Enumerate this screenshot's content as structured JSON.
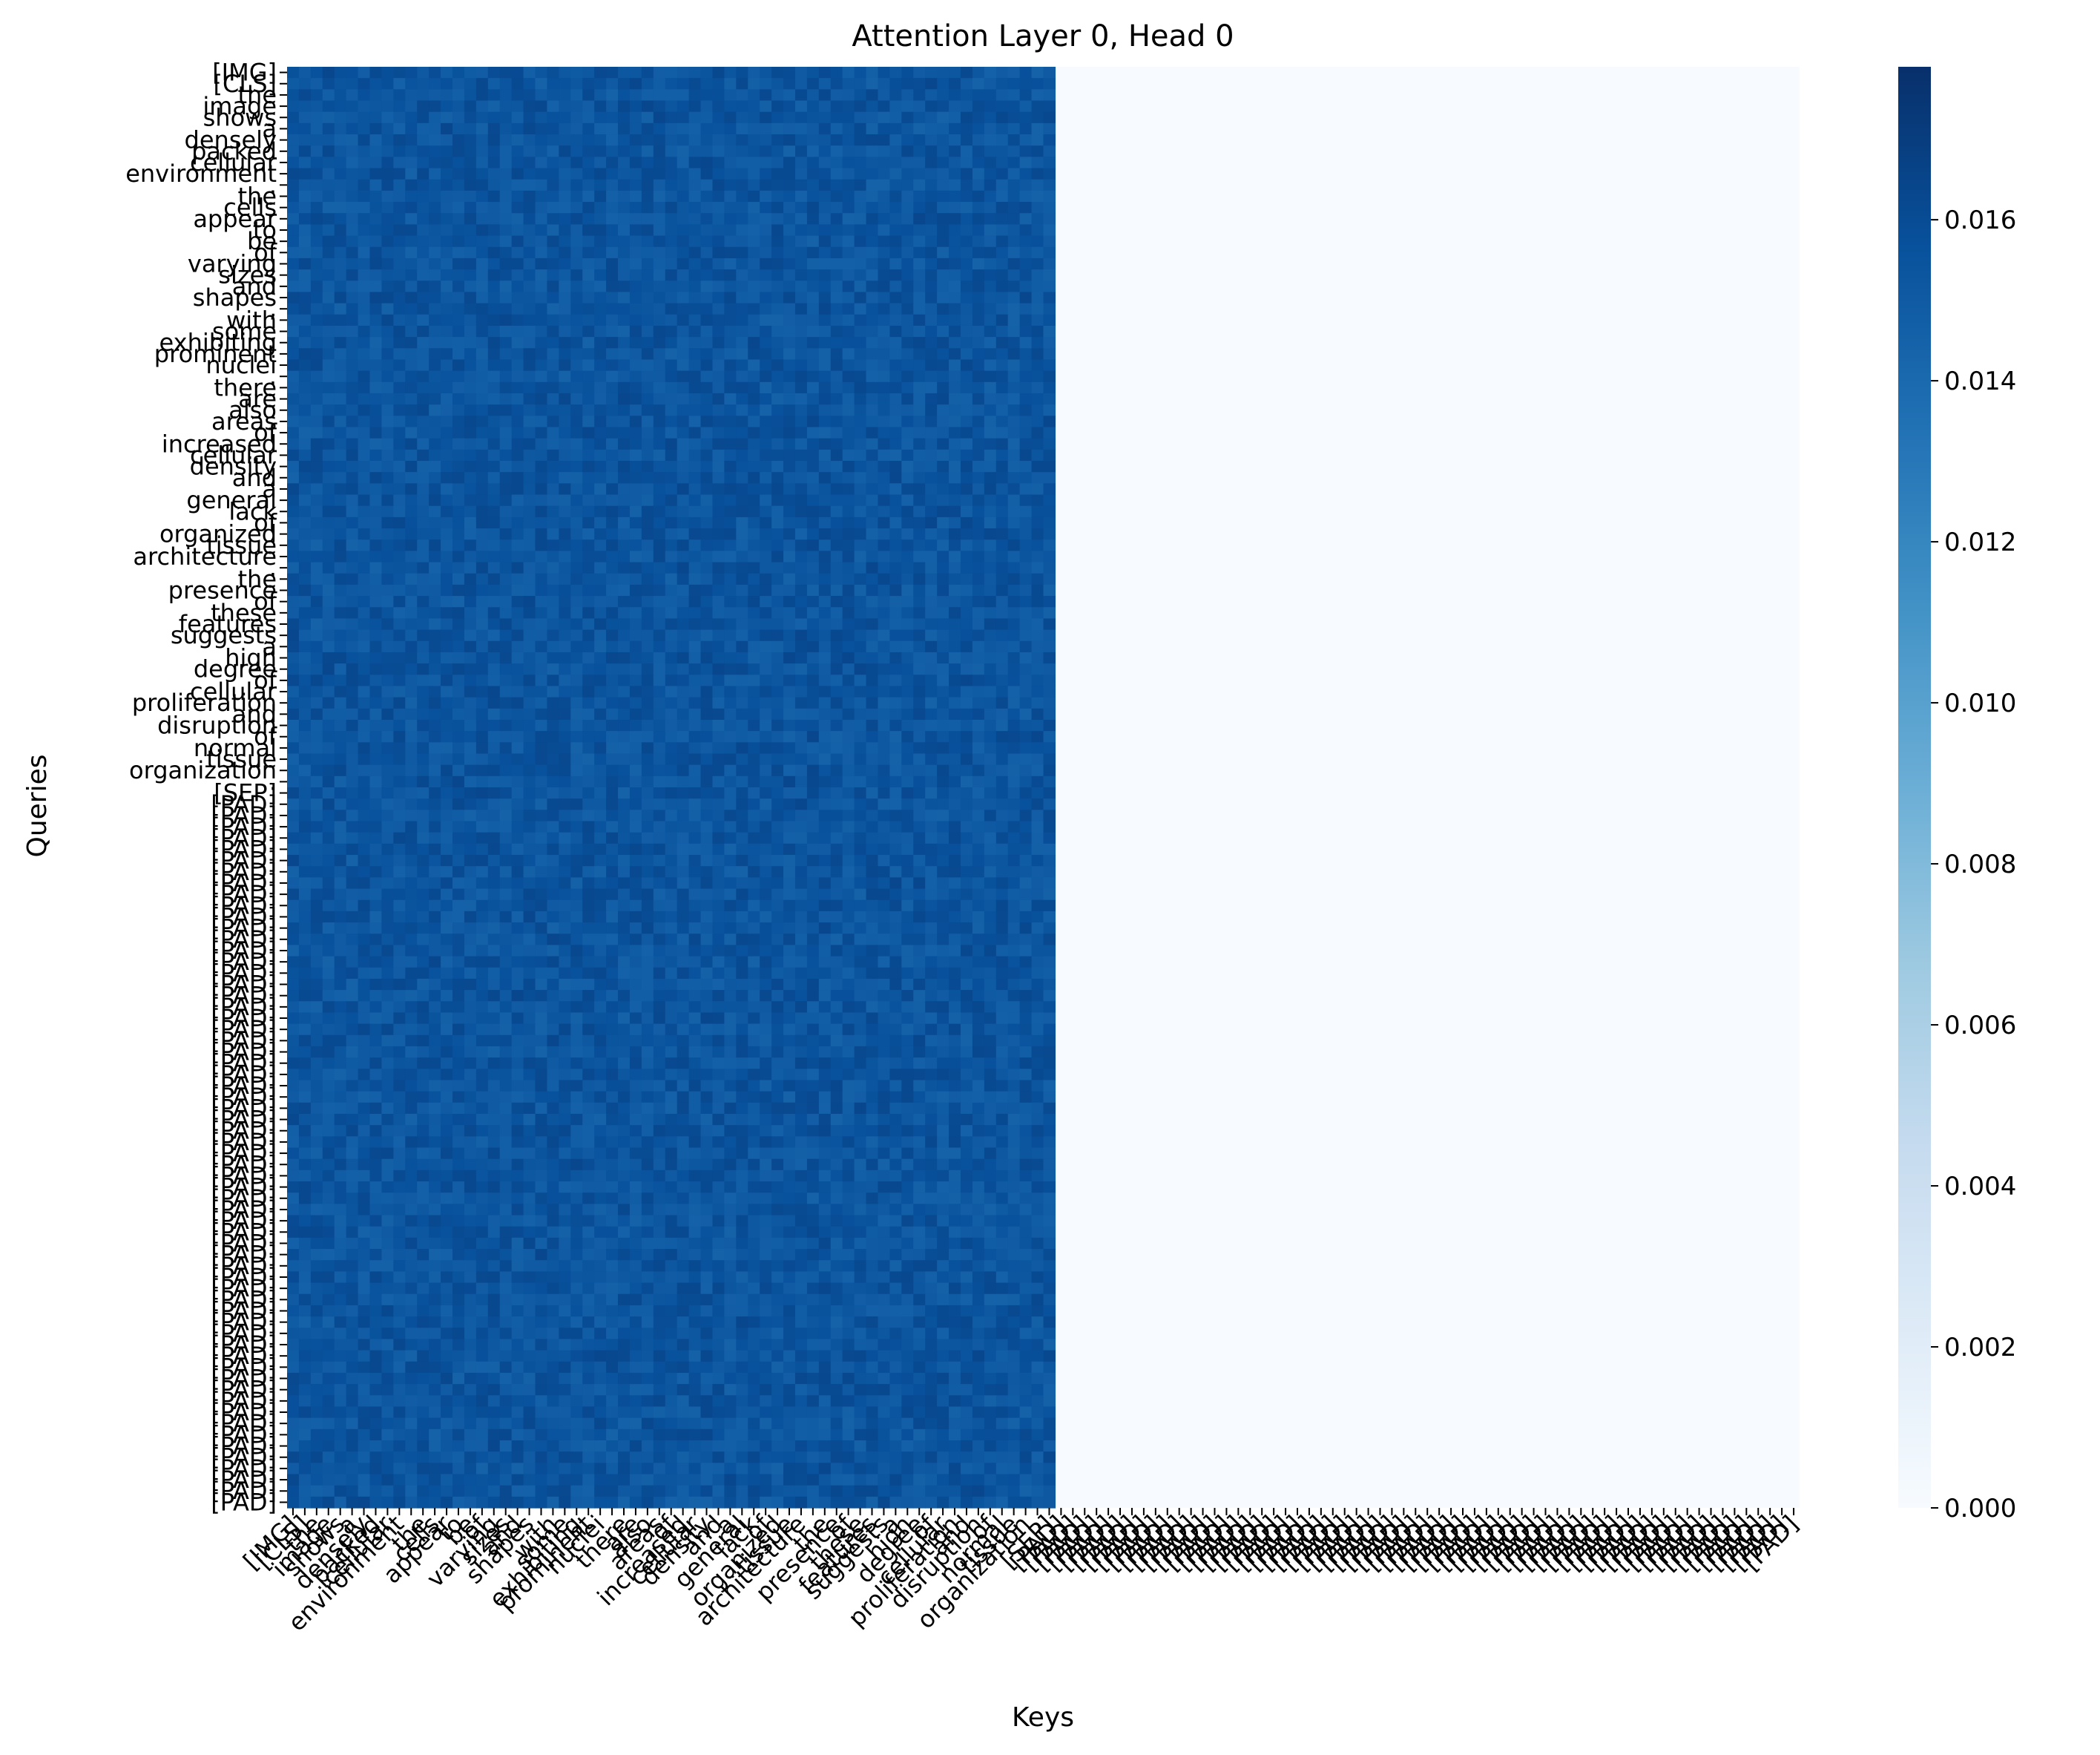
{
  "chart_data": {
    "type": "heatmap",
    "title": "Attention Layer 0, Head 0",
    "xlabel": "Keys",
    "ylabel": "Queries",
    "colormap": "Blues",
    "vmin": 0.0,
    "vmax": 0.0179,
    "active_value": 0.0154,
    "row_labels": [
      "[IMG]",
      "[CLS]",
      "the",
      "image",
      "shows",
      "a",
      "densely",
      "packed",
      "cellular",
      "environment",
      ".",
      "the",
      "cells",
      "appear",
      "to",
      "be",
      "of",
      "varying",
      "sizes",
      "and",
      "shapes",
      ",",
      "with",
      "some",
      "exhibiting",
      "prominent",
      "nuclei",
      ".",
      "there",
      "are",
      "also",
      "areas",
      "of",
      "increased",
      "cellular",
      "density",
      "and",
      "a",
      "general",
      "lack",
      "of",
      "organized",
      "tissue",
      "architecture",
      ".",
      "the",
      "presence",
      "of",
      "these",
      "features",
      "suggests",
      "a",
      "high",
      "degree",
      "of",
      "cellular",
      "proliferation",
      "and",
      "disruption",
      "of",
      "normal",
      "tissue",
      "organization",
      ".",
      "[SEP]",
      "[PAD]",
      "[PAD]",
      "[PAD]",
      "[PAD]",
      "[PAD]",
      "[PAD]",
      "[PAD]",
      "[PAD]",
      "[PAD]",
      "[PAD]",
      "[PAD]",
      "[PAD]",
      "[PAD]",
      "[PAD]",
      "[PAD]",
      "[PAD]",
      "[PAD]",
      "[PAD]",
      "[PAD]",
      "[PAD]",
      "[PAD]",
      "[PAD]",
      "[PAD]",
      "[PAD]",
      "[PAD]",
      "[PAD]",
      "[PAD]",
      "[PAD]",
      "[PAD]",
      "[PAD]",
      "[PAD]",
      "[PAD]",
      "[PAD]",
      "[PAD]",
      "[PAD]",
      "[PAD]",
      "[PAD]",
      "[PAD]",
      "[PAD]",
      "[PAD]",
      "[PAD]",
      "[PAD]",
      "[PAD]",
      "[PAD]",
      "[PAD]",
      "[PAD]",
      "[PAD]",
      "[PAD]",
      "[PAD]",
      "[PAD]",
      "[PAD]",
      "[PAD]",
      "[PAD]",
      "[PAD]",
      "[PAD]",
      "[PAD]",
      "[PAD]",
      "[PAD]",
      "[PAD]",
      "[PAD]",
      "[PAD]",
      "[PAD]",
      "[PAD]"
    ],
    "active_keys": 65,
    "colorbar_ticks": [
      "0.000",
      "0.002",
      "0.004",
      "0.006",
      "0.008",
      "0.010",
      "0.012",
      "0.014",
      "0.016"
    ],
    "colorbar_tick_values": [
      0.0,
      0.002,
      0.004,
      0.006,
      0.008,
      0.01,
      0.012,
      0.014,
      0.016
    ],
    "colors": {
      "low": "#f7fbff",
      "high": "#08306b",
      "active": "#0f5aa8"
    }
  }
}
